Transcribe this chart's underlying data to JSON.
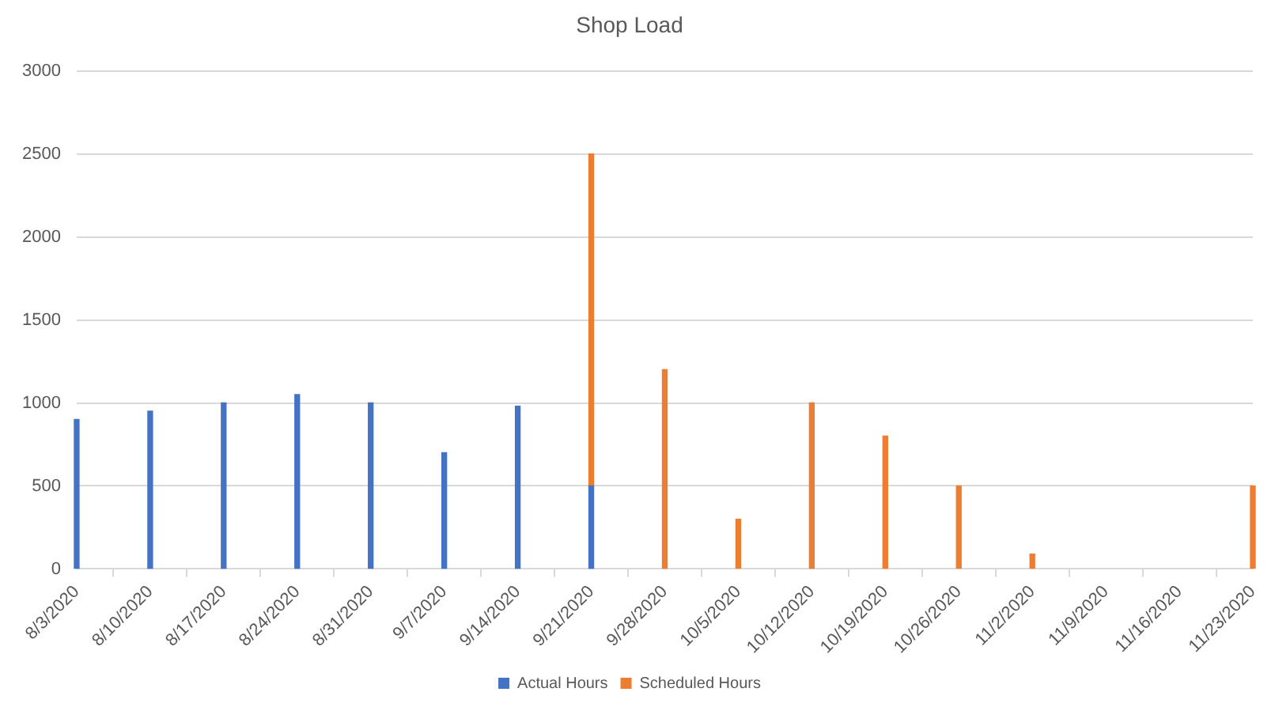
{
  "chart_data": {
    "type": "bar",
    "title": "Shop Load",
    "categories": [
      "8/3/2020",
      "8/10/2020",
      "8/17/2020",
      "8/24/2020",
      "8/31/2020",
      "9/7/2020",
      "9/14/2020",
      "9/21/2020",
      "9/28/2020",
      "10/5/2020",
      "10/12/2020",
      "10/19/2020",
      "10/26/2020",
      "11/2/2020",
      "11/9/2020",
      "11/16/2020",
      "11/23/2020"
    ],
    "series": [
      {
        "name": "Actual Hours",
        "color": "#4472c4",
        "values": [
          900,
          950,
          1000,
          1050,
          1000,
          700,
          980,
          500,
          null,
          null,
          null,
          null,
          null,
          null,
          null,
          null,
          null
        ]
      },
      {
        "name": "Scheduled Hours",
        "color": "#ed7d31",
        "values": [
          null,
          null,
          null,
          null,
          null,
          null,
          null,
          2000,
          1200,
          300,
          1000,
          800,
          500,
          90,
          null,
          null,
          500
        ]
      }
    ],
    "stacked": true,
    "ylim": [
      0,
      3000
    ],
    "yticks": [
      0,
      500,
      1000,
      1500,
      2000,
      2500,
      3000
    ],
    "grid": "y",
    "legend": "bottom"
  }
}
